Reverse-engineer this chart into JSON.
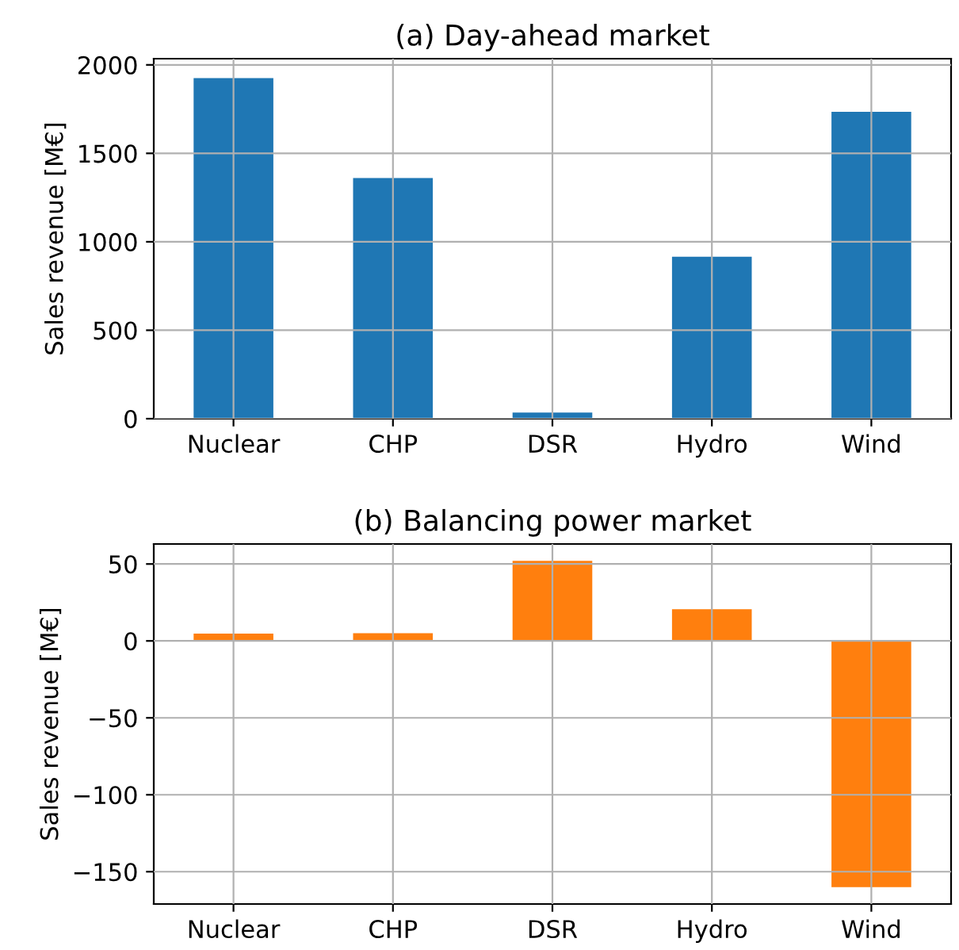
{
  "chart_data": [
    {
      "type": "bar",
      "title": "(a) Day-ahead market",
      "ylabel": "Sales revenue [M€]",
      "categories": [
        "Nuclear",
        "CHP",
        "DSR",
        "Hydro",
        "Wind"
      ],
      "series": [
        {
          "color": "#1f77b4",
          "values": [
            1925,
            1360,
            35,
            915,
            1735
          ]
        }
      ],
      "ylim": [
        0,
        2035
      ],
      "yticks": [
        0,
        500,
        1000,
        1500,
        2000
      ],
      "grid": true
    },
    {
      "type": "bar",
      "title": "(b) Balancing power market",
      "ylabel": "Sales revenue [M€]",
      "categories": [
        "Nuclear",
        "CHP",
        "DSR",
        "Hydro",
        "Wind"
      ],
      "series": [
        {
          "color": "#ff7f0e",
          "values": [
            4.8,
            5,
            52,
            20.6,
            -160
          ]
        }
      ],
      "ylim": [
        -171,
        63
      ],
      "yticks": [
        {
          "value": -150,
          "label": "−150"
        },
        {
          "value": -100,
          "label": "−100"
        },
        {
          "value": -50,
          "label": "−50"
        },
        0,
        50
      ],
      "grid": true
    }
  ]
}
